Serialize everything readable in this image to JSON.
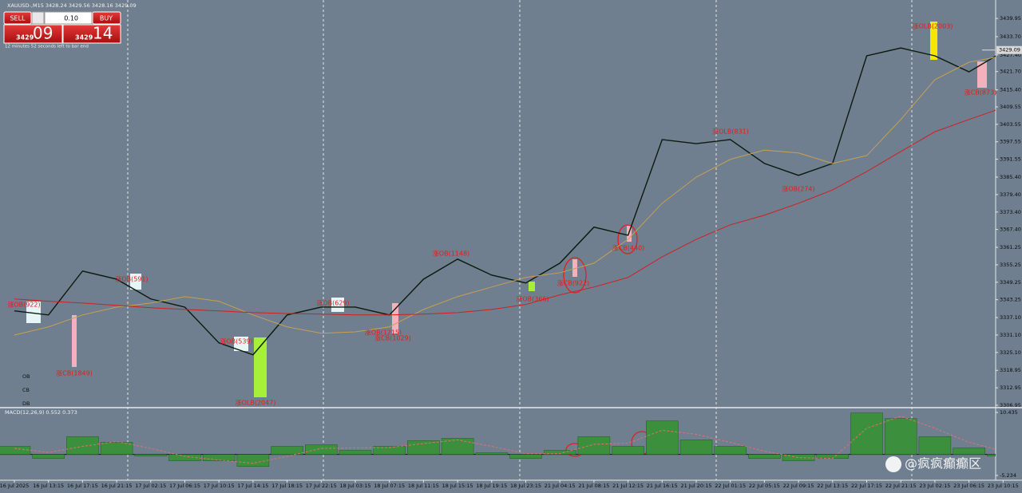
{
  "window": {
    "symbol_header": "XAUUSD-,M15  3428.24 3429.56 3428.16 3429.09",
    "timer": "12 minutes 52 seconds left to bar end"
  },
  "trade_panel": {
    "sell": "SELL",
    "buy": "BUY",
    "lot": "0.10",
    "bid_big": "3429",
    "bid_small": "09",
    "ask_big": "3429",
    "ask_small": "14"
  },
  "side_labels": [
    "OB",
    "CB",
    "DB"
  ],
  "watermark": "@疯疯癫癫区",
  "chart_data": [
    {
      "type": "line",
      "categories": [
        "16 Jul 2025",
        "16 Jul 13:15",
        "16 Jul 17:15",
        "16 Jul 21:15",
        "17 Jul 02:15",
        "17 Jul 06:15",
        "17 Jul 10:15",
        "17 Jul 14:15",
        "17 Jul 18:15",
        "17 Jul 22:15",
        "18 Jul 03:15",
        "18 Jul 07:15",
        "18 Jul 11:15",
        "18 Jul 15:15",
        "18 Jul 19:15",
        "18 Jul 23:15",
        "21 Jul 04:15",
        "21 Jul 08:15",
        "21 Jul 12:15",
        "21 Jul 16:15",
        "21 Jul 20:15",
        "22 Jul 01:15",
        "22 Jul 05:15",
        "22 Jul 09:15",
        "22 Jul 13:15",
        "22 Jul 17:15",
        "22 Jul 21:15",
        "23 Jul 02:15",
        "23 Jul 06:15",
        "23 Jul 10:15"
      ],
      "series": [
        {
          "color": "#0b1a0b",
          "values": [
            3339.4,
            3338.0,
            3353.1,
            3350.3,
            3343.5,
            3340.7,
            3328.4,
            3324.3,
            3338.0,
            3340.7,
            3340.7,
            3338.0,
            3350.3,
            3357.2,
            3351.7,
            3349.0,
            3355.8,
            3368.2,
            3365.4,
            3398.3,
            3396.9,
            3398.3,
            3390.1,
            3386.0,
            3390.1,
            3427.1,
            3429.8,
            3427.1,
            3421.6,
            3428.5
          ]
        },
        {
          "color": "#c8a050",
          "values": [
            3331.1,
            3333.9,
            3338.0,
            3340.7,
            3342.1,
            3344.3,
            3342.7,
            3338.0,
            3333.9,
            3331.7,
            3332.2,
            3333.9,
            3339.9,
            3344.3,
            3347.6,
            3350.9,
            3352.5,
            3355.8,
            3364.0,
            3376.4,
            3385.4,
            3391.5,
            3394.7,
            3393.7,
            3390.1,
            3392.8,
            3405.2,
            3418.9,
            3424.9,
            3427.1
          ]
        },
        {
          "color": "#d02020",
          "values": [
            3343.5,
            3342.7,
            3342.1,
            3341.3,
            3340.5,
            3339.9,
            3339.4,
            3338.8,
            3338.5,
            3338.3,
            3338.0,
            3338.0,
            3338.3,
            3338.8,
            3339.9,
            3341.6,
            3344.9,
            3347.6,
            3350.9,
            3358.0,
            3364.0,
            3369.0,
            3372.3,
            3376.4,
            3381.0,
            3387.3,
            3394.2,
            3401.0,
            3405.2,
            3409.3
          ]
        }
      ],
      "ylim": [
        3306.4,
        3446.3
      ],
      "yticks": [
        {
          "value": 3439.95,
          "label": "3439.95"
        },
        {
          "value": 3433.7,
          "label": "3433.70"
        },
        {
          "value": 3427.4,
          "label": "3427.40"
        },
        {
          "value": 3421.7,
          "label": "3421.70"
        },
        {
          "value": 3415.4,
          "label": "3415.40"
        },
        {
          "value": 3409.55,
          "label": "3409.55"
        },
        {
          "value": 3403.55,
          "label": "3403.55"
        },
        {
          "value": 3397.55,
          "label": "3397.55"
        },
        {
          "value": 3391.55,
          "label": "3391.55"
        },
        {
          "value": 3385.4,
          "label": "3385.40"
        },
        {
          "value": 3379.4,
          "label": "3379.40"
        },
        {
          "value": 3373.4,
          "label": "3373.40"
        },
        {
          "value": 3367.4,
          "label": "3367.40"
        },
        {
          "value": 3361.25,
          "label": "3361.25"
        },
        {
          "value": 3355.25,
          "label": "3355.25"
        },
        {
          "value": 3349.25,
          "label": "3349.25"
        },
        {
          "value": 3343.25,
          "label": "3343.25"
        },
        {
          "value": 3337.1,
          "label": "3337.10"
        },
        {
          "value": 3331.1,
          "label": "3331.10"
        },
        {
          "value": 3325.1,
          "label": "3325.10"
        },
        {
          "value": 3318.95,
          "label": "3318.95"
        },
        {
          "value": 3312.95,
          "label": "3312.95"
        },
        {
          "value": 3306.95,
          "label": "3306.95"
        }
      ],
      "current_price": 3429.09,
      "annotations": [
        "涨OB(922)",
        "涨CB(1849)",
        "涨OB(591)",
        "涨OB(539)",
        "涨OLB(2047)",
        "涨OB(629)",
        "涨OB(1215)",
        "涨CB(1029)",
        "涨OB(1148)",
        "涨OB(366)",
        "涨CB(922)",
        "涨CB(440)",
        "涨OLB(831)",
        "涨OB(274)",
        "涨OLB(2003)",
        "涨CB(873)"
      ]
    },
    {
      "type": "bar",
      "title": "MACD(12,26,9) 0.552 0.373",
      "series": [
        {
          "type": "bar",
          "color": "#3c8f3c",
          "values": [
            2.0,
            -1.0,
            4.4,
            3.0,
            -0.4,
            -1.6,
            -1.6,
            -3.0,
            2.0,
            2.4,
            1.0,
            2.0,
            3.4,
            4.0,
            0.4,
            -1.0,
            1.0,
            4.4,
            2.0,
            8.3,
            3.6,
            2.0,
            -1.0,
            -1.6,
            -1.0,
            10.3,
            8.9,
            4.4,
            1.6,
            -0.4
          ]
        },
        {
          "type": "line",
          "color": "#e07070",
          "values": [
            1.5,
            0.5,
            2.0,
            3.2,
            1.5,
            -0.5,
            -1.4,
            -2.2,
            -0.5,
            1.5,
            1.6,
            1.7,
            2.7,
            3.6,
            2.0,
            0.2,
            0.2,
            2.5,
            2.8,
            6.0,
            5.0,
            3.0,
            0.8,
            -0.8,
            -1.0,
            6.5,
            9.5,
            6.5,
            3.0,
            0.8
          ]
        }
      ],
      "ylim": [
        -5.234,
        10.435
      ],
      "yticks": [
        10.435,
        -5.234
      ]
    }
  ]
}
